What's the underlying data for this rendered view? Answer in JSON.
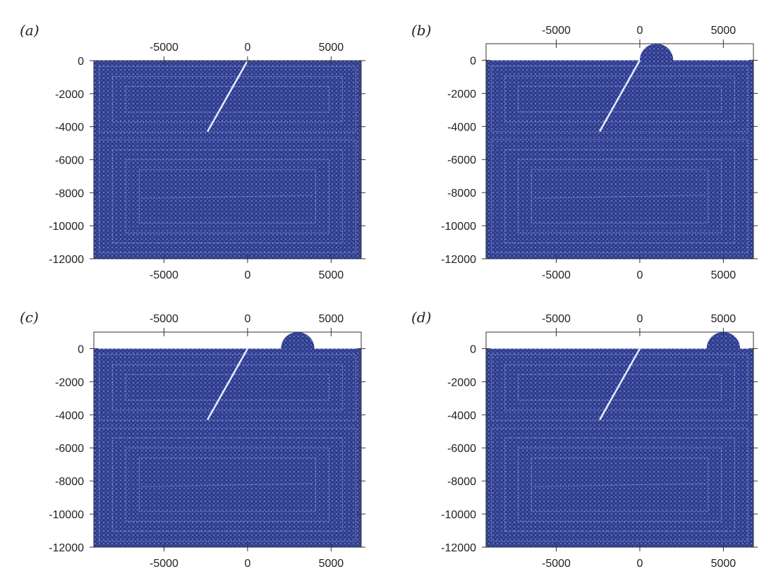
{
  "colors": {
    "mesh": "#2b3a8f",
    "mesh_line": "#9aa4d8",
    "fault": "#e8ecff",
    "axis": "#333333",
    "background": "#ffffff"
  },
  "chart_data": [
    {
      "type": "diagram",
      "panel_label": "(a)",
      "x_ticks": [
        -5000,
        0,
        5000
      ],
      "y_ticks": [
        0,
        -2000,
        -4000,
        -6000,
        -8000,
        -10000,
        -12000
      ],
      "xlim": [
        -9200,
        6800
      ],
      "ylim": [
        -12000,
        0
      ],
      "has_topography": false,
      "fault": {
        "x": [
          0,
          -2400
        ],
        "y": [
          0,
          -4300
        ]
      }
    },
    {
      "type": "diagram",
      "panel_label": "(b)",
      "x_ticks": [
        -5000,
        0,
        5000
      ],
      "y_ticks": [
        0,
        -2000,
        -4000,
        -6000,
        -8000,
        -10000,
        -12000
      ],
      "xlim": [
        -9200,
        6800
      ],
      "ylim": [
        -12000,
        1000
      ],
      "has_topography": true,
      "bump": {
        "cx": 1000,
        "radius": 1000
      },
      "fault": {
        "x": [
          0,
          -2400
        ],
        "y": [
          0,
          -4300
        ]
      }
    },
    {
      "type": "diagram",
      "panel_label": "(c)",
      "x_ticks": [
        -5000,
        0,
        5000
      ],
      "y_ticks": [
        0,
        -2000,
        -4000,
        -6000,
        -8000,
        -10000,
        -12000
      ],
      "xlim": [
        -9200,
        6800
      ],
      "ylim": [
        -12000,
        1000
      ],
      "has_topography": true,
      "bump": {
        "cx": 3000,
        "radius": 1000
      },
      "fault": {
        "x": [
          0,
          -2400
        ],
        "y": [
          0,
          -4300
        ]
      }
    },
    {
      "type": "diagram",
      "panel_label": "(d)",
      "x_ticks": [
        -5000,
        0,
        5000
      ],
      "y_ticks": [
        0,
        -2000,
        -4000,
        -6000,
        -8000,
        -10000,
        -12000
      ],
      "xlim": [
        -9200,
        6800
      ],
      "ylim": [
        -12000,
        1000
      ],
      "has_topography": true,
      "bump": {
        "cx": 5000,
        "radius": 1000
      },
      "fault": {
        "x": [
          0,
          -2400
        ],
        "y": [
          0,
          -4300
        ]
      }
    }
  ]
}
